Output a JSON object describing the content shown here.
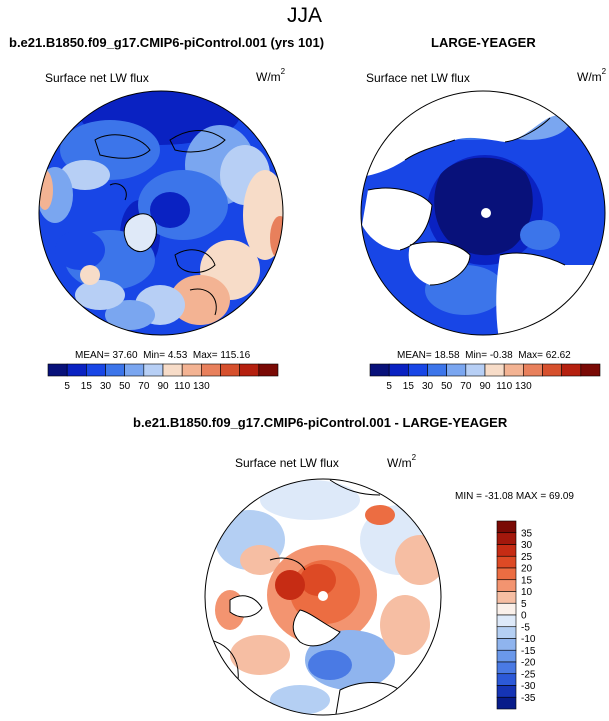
{
  "title": "JJA",
  "panels": [
    {
      "title": "b.e21.B1850.f09_g17.CMIP6-piControl.001 (yrs 101)",
      "variable": "Surface net LW flux",
      "units_base": "W/m",
      "units_exp": "2",
      "stats": {
        "mean_label": "MEAN=",
        "mean": "37.60",
        "min_label": "Min=",
        "min": "4.53",
        "max_label": "Max=",
        "max": "115.16"
      }
    },
    {
      "title": "LARGE-YEAGER",
      "variable": "Surface net LW flux",
      "units_base": "W/m",
      "units_exp": "2",
      "stats": {
        "mean_label": "MEAN=",
        "mean": "18.58",
        "min_label": "Min=",
        "min": "-0.38",
        "max_label": "Max=",
        "max": "62.62"
      }
    },
    {
      "title": "b.e21.B1850.f09_g17.CMIP6-piControl.001 - LARGE-YEAGER",
      "variable": "Surface net LW flux",
      "units_base": "W/m",
      "units_exp": "2",
      "stats": {
        "min_label": "MIN =",
        "min": "-31.08",
        "max_label": "MAX =",
        "max": "69.09"
      }
    }
  ],
  "chart_data": [
    {
      "type": "heatmap",
      "projection": "north-polar-stereographic",
      "title": "b.e21.B1850.f09_g17.CMIP6-piControl.001 (yrs 101)",
      "variable": "Surface net LW flux",
      "units": "W/m^2",
      "stats": {
        "mean": 37.6,
        "min": 4.53,
        "max": 115.16
      },
      "colorbar": {
        "orientation": "horizontal",
        "levels": [
          5,
          15,
          30,
          50,
          70,
          90,
          110,
          130
        ],
        "tick_labels": [
          "5",
          "15",
          "30",
          "50",
          "70",
          "90",
          "110",
          "130"
        ],
        "colors": [
          "#08117a",
          "#0a22c2",
          "#1846e6",
          "#3c75ea",
          "#7aa6f0",
          "#b7cff5",
          "#f7dcc8",
          "#f3b393",
          "#e8805c",
          "#d6502d",
          "#b5200f",
          "#7a0a05"
        ]
      }
    },
    {
      "type": "heatmap",
      "projection": "north-polar-stereographic",
      "title": "LARGE-YEAGER",
      "variable": "Surface net LW flux",
      "units": "W/m^2",
      "stats": {
        "mean": 18.58,
        "min": -0.38,
        "max": 62.62
      },
      "colorbar": {
        "orientation": "horizontal",
        "levels": [
          5,
          15,
          30,
          50,
          70,
          90,
          110,
          130
        ],
        "tick_labels": [
          "5",
          "15",
          "30",
          "50",
          "70",
          "90",
          "110",
          "130"
        ],
        "colors": [
          "#08117a",
          "#0a22c2",
          "#1846e6",
          "#3c75ea",
          "#7aa6f0",
          "#b7cff5",
          "#f7dcc8",
          "#f3b393",
          "#e8805c",
          "#d6502d",
          "#b5200f",
          "#7a0a05"
        ]
      }
    },
    {
      "type": "heatmap",
      "projection": "north-polar-stereographic",
      "title": "b.e21.B1850.f09_g17.CMIP6-piControl.001 - LARGE-YEAGER",
      "variable": "Surface net LW flux",
      "units": "W/m^2",
      "stats": {
        "min": -31.08,
        "max": 69.09
      },
      "colorbar": {
        "orientation": "vertical",
        "levels": [
          35,
          30,
          25,
          20,
          15,
          10,
          5,
          0,
          -5,
          -10,
          -15,
          -20,
          -25,
          -30,
          -35
        ],
        "tick_labels": [
          "35",
          "30",
          "25",
          "20",
          "15",
          "10",
          "5",
          "0",
          "-5",
          "-10",
          "-15",
          "-20",
          "-25",
          "-30",
          "-35"
        ],
        "colors": [
          "#7a0a05",
          "#a3180c",
          "#c62c14",
          "#dd4a25",
          "#ec6d42",
          "#f39470",
          "#f6bea3",
          "#faf0ea",
          "#dde9f9",
          "#b4cff3",
          "#8fb4ee",
          "#6a98ea",
          "#4a7ae4",
          "#2c59d8",
          "#1534b5",
          "#081c8a"
        ]
      }
    }
  ]
}
